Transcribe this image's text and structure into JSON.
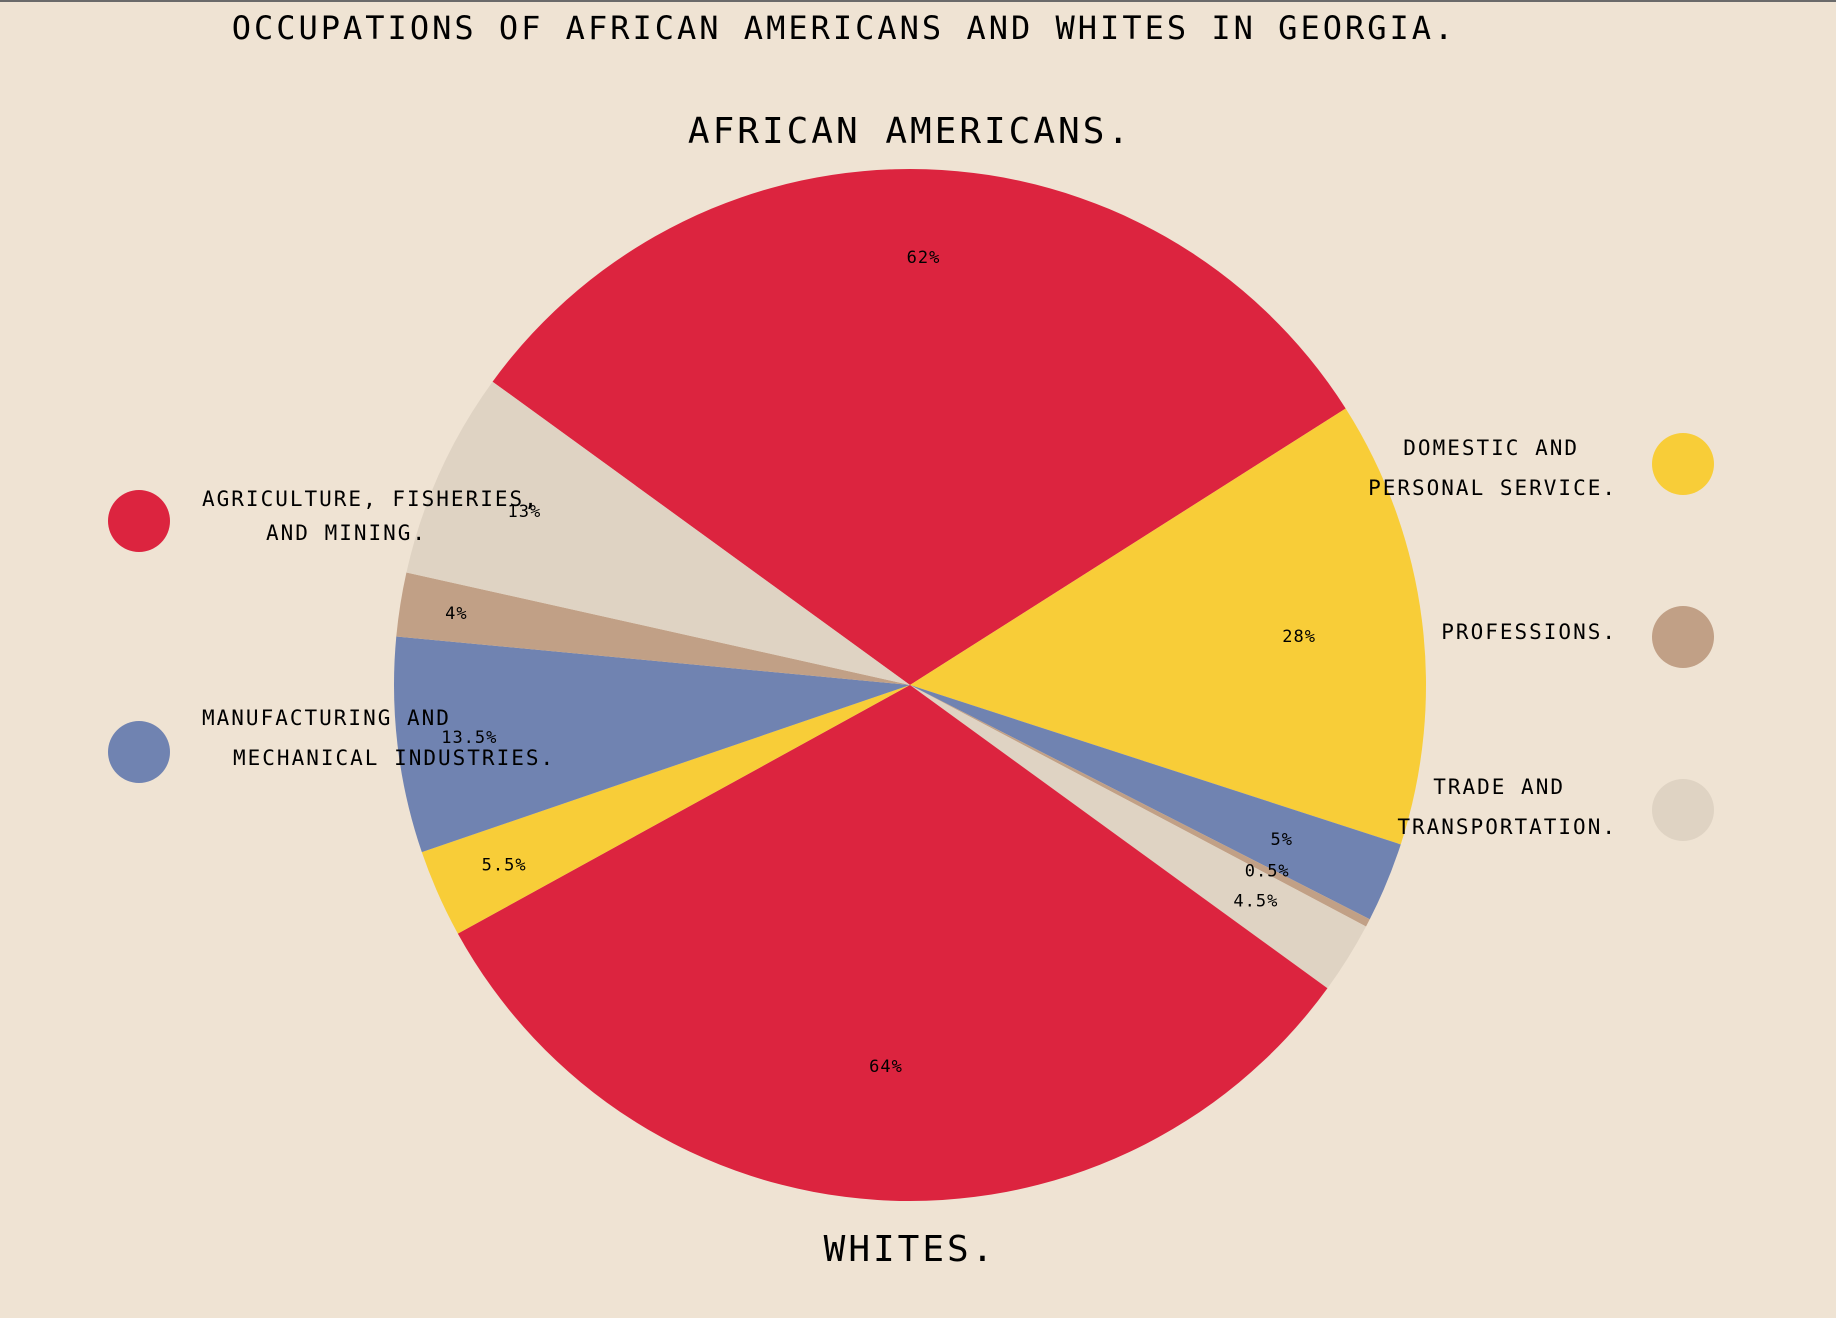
{
  "chart_data": {
    "type": "pie",
    "title": "OCCUPATIONS OF AFRICAN AMERICANS AND WHITES IN GEORGIA.",
    "categories": [
      "AGRICULTURE, FISHERIES, AND MINING.",
      "DOMESTIC AND PERSONAL SERVICE.",
      "MANUFACTURING AND MECHANICAL INDUSTRIES.",
      "PROFESSIONS.",
      "TRADE AND TRANSPORTATION."
    ],
    "colors": [
      "#dc243f",
      "#f8cd38",
      "#7083b1",
      "#c1a086",
      "#dfd3c3"
    ],
    "series": [
      {
        "name": "AFRICAN AMERICANS.",
        "values": [
          62,
          28,
          5,
          0.5,
          4.5
        ],
        "labels": [
          "62%",
          "28%",
          "5%",
          "0.5%",
          "4.5%"
        ]
      },
      {
        "name": "WHITES.",
        "values": [
          64,
          5.5,
          13.5,
          4,
          13
        ],
        "labels": [
          "64%",
          "5.5%",
          "13.5%",
          "4%",
          "13%"
        ]
      }
    ],
    "legend": [
      {
        "lines": [
          "AGRICULTURE, FISHERIES,",
          "AND MINING."
        ],
        "color": "#dc243f"
      },
      {
        "lines": [
          "MANUFACTURING AND",
          "MECHANICAL INDUSTRIES."
        ],
        "color": "#7083b1"
      },
      {
        "lines": [
          "DOMESTIC AND",
          "PERSONAL SERVICE."
        ],
        "color": "#f8cd38"
      },
      {
        "lines": [
          "PROFESSIONS."
        ],
        "color": "#c1a086"
      },
      {
        "lines": [
          "TRADE AND",
          "TRANSPORTATION."
        ],
        "color": "#dfd3c3"
      }
    ]
  }
}
